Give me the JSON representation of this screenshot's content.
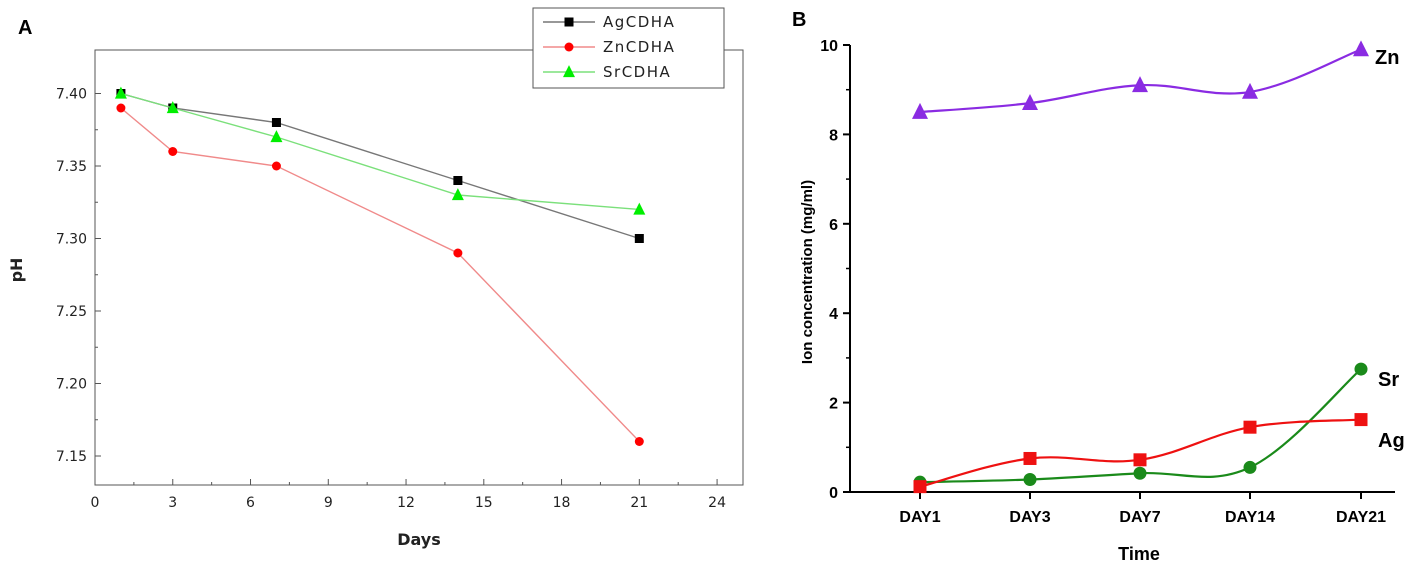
{
  "chart_data": [
    {
      "panel": "A",
      "type": "line",
      "xlabel": "Days",
      "ylabel": "pH",
      "xlim": [
        0,
        25
      ],
      "ylim": [
        7.13,
        7.43
      ],
      "xticks": [
        0,
        3,
        6,
        9,
        12,
        15,
        18,
        21,
        24
      ],
      "yticks": [
        7.15,
        7.2,
        7.25,
        7.3,
        7.35,
        7.4
      ],
      "ytick_labels": [
        "7.15",
        "7.20",
        "7.25",
        "7.30",
        "7.35",
        "7.40"
      ],
      "x": [
        1,
        3,
        7,
        14,
        21
      ],
      "legend_position": "top-right",
      "series": [
        {
          "name": "AgCDHA",
          "color": "#777777",
          "marker_color": "#000000",
          "marker": "square",
          "values": [
            7.4,
            7.39,
            7.38,
            7.34,
            7.3
          ]
        },
        {
          "name": "ZnCDHA",
          "color": "#f08a8a",
          "marker_color": "#ff0000",
          "marker": "circle",
          "values": [
            7.39,
            7.36,
            7.35,
            7.29,
            7.16
          ]
        },
        {
          "name": "SrCDHA",
          "color": "#7be07b",
          "marker_color": "#00ee00",
          "marker": "triangle",
          "values": [
            7.4,
            7.39,
            7.37,
            7.33,
            7.32
          ]
        }
      ]
    },
    {
      "panel": "B",
      "type": "line",
      "xlabel": "Time",
      "ylabel": "Ion concentration (mg/ml)",
      "categories": [
        "DAY1",
        "DAY3",
        "DAY7",
        "DAY14",
        "DAY21"
      ],
      "ylim": [
        0,
        10
      ],
      "yticks": [
        0,
        2,
        4,
        6,
        8,
        10
      ],
      "series": [
        {
          "name": "Zn",
          "label": "Zn",
          "color": "#8a2be2",
          "marker": "triangle",
          "values": [
            8.5,
            8.7,
            9.1,
            8.95,
            9.9
          ]
        },
        {
          "name": "Sr",
          "label": "Sr",
          "color": "#1a8a1a",
          "marker": "circle",
          "values": [
            0.22,
            0.28,
            0.42,
            0.55,
            2.75
          ]
        },
        {
          "name": "Ag",
          "label": "Ag",
          "color": "#ee1111",
          "marker": "square",
          "values": [
            0.12,
            0.75,
            0.72,
            1.45,
            1.62
          ]
        }
      ]
    }
  ]
}
